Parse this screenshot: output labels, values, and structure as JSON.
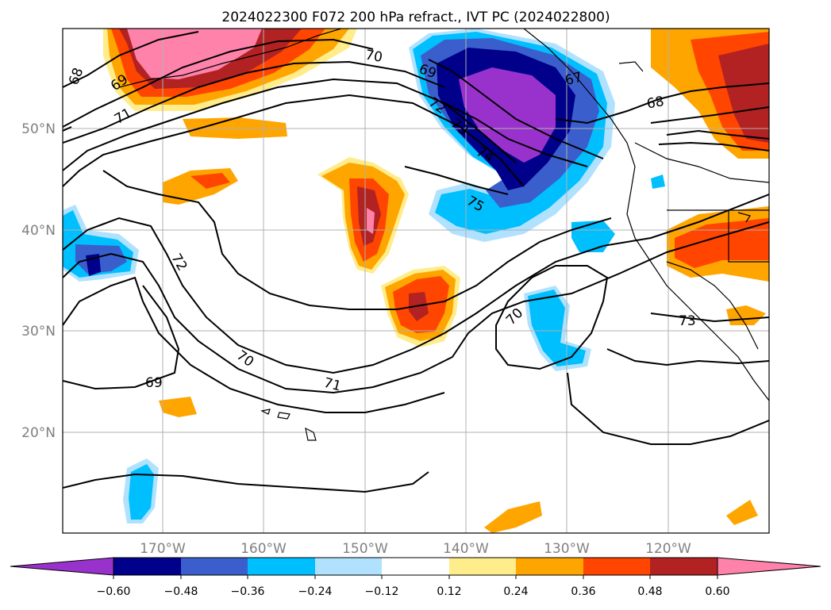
{
  "map": {
    "title": "2024022300 F072 200 hPa refract., IVT PC (2024022800)",
    "lat_labels": [
      "50°N",
      "40°N",
      "30°N",
      "20°N"
    ],
    "lon_labels": [
      "170°W",
      "160°W",
      "150°W",
      "140°W",
      "130°W",
      "120°W"
    ],
    "contour_labels": [
      "68",
      "69",
      "70",
      "71",
      "72",
      "73",
      "74",
      "75",
      "67"
    ],
    "colors": {
      "grid": "#b0b0b0",
      "contour": "#000000",
      "axis_label": "#808080"
    }
  },
  "colorbar": {
    "ticks": [
      "−0.60",
      "−0.48",
      "−0.36",
      "−0.24",
      "−0.12",
      "0.12",
      "0.24",
      "0.36",
      "0.48",
      "0.60"
    ],
    "colors": [
      "#9932cc",
      "#00008b",
      "#3a5fcd",
      "#00bfff",
      "#b0e2ff",
      "#ffffff",
      "#ffec8b",
      "#ffa500",
      "#ff4500",
      "#b22222",
      "#ff82ab"
    ]
  }
}
